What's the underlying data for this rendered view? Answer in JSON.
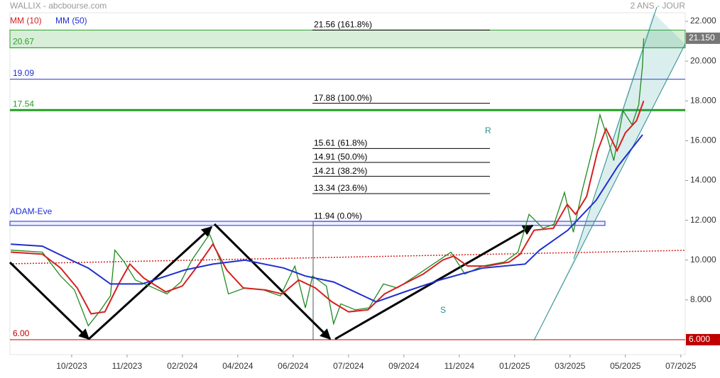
{
  "chart_data": {
    "type": "line",
    "title": "WALLIX - abcbourse.com",
    "subtitle": "2 ANS - JOUR",
    "xlim": [
      -1.115,
      11.08
    ],
    "ylim": [
      5.25,
      22.43
    ],
    "xticks": [
      {
        "value": 0,
        "label": "10/2023"
      },
      {
        "value": 1,
        "label": "11/2023"
      },
      {
        "value": 2,
        "label": "02/2024"
      },
      {
        "value": 3,
        "label": "04/2024"
      },
      {
        "value": 4,
        "label": "06/2024"
      },
      {
        "value": 5,
        "label": "07/2024"
      },
      {
        "value": 6,
        "label": "09/2024"
      },
      {
        "value": 7,
        "label": "11/2024"
      },
      {
        "value": 8,
        "label": "01/2025"
      },
      {
        "value": 9,
        "label": "03/2025"
      },
      {
        "value": 10,
        "label": "05/2025"
      },
      {
        "value": 11,
        "label": "07/2025"
      }
    ],
    "yticks": [
      {
        "value": 8,
        "label": "8.000"
      },
      {
        "value": 10,
        "label": "10.000"
      },
      {
        "value": 12,
        "label": "12.000"
      },
      {
        "value": 14,
        "label": "14.000"
      },
      {
        "value": 16,
        "label": "16.000"
      },
      {
        "value": 18,
        "label": "18.000"
      },
      {
        "value": 20,
        "label": "20.000"
      },
      {
        "value": 22,
        "label": "22.000"
      }
    ],
    "series": [
      {
        "color": "#1f8a1f",
        "x": [
          -1.1,
          -0.53,
          -0.2,
          0.05,
          0.3,
          0.5,
          0.7,
          0.78,
          0.95,
          1.15,
          1.4,
          1.72,
          1.97,
          2.17,
          2.49,
          2.68,
          2.83,
          3.13,
          3.46,
          3.77,
          4.03,
          4.22,
          4.35,
          4.6,
          4.73,
          4.86,
          5.12,
          5.37,
          5.63,
          5.88,
          6.21,
          6.53,
          6.85,
          7.1,
          7.42,
          7.81,
          8.06,
          8.26,
          8.51,
          8.71,
          8.9,
          9.06,
          9.22,
          9.41,
          9.54,
          9.67,
          9.79,
          9.96,
          10.12,
          10.24,
          10.31,
          10.33
        ],
        "values": [
          10.5,
          10.4,
          9.2,
          8.5,
          6.7,
          7.4,
          8.2,
          10.5,
          9.9,
          9.0,
          8.7,
          8.3,
          8.9,
          10.0,
          11.3,
          10.0,
          8.3,
          8.6,
          8.5,
          8.2,
          9.7,
          7.6,
          9.2,
          8.7,
          6.8,
          7.8,
          7.5,
          7.6,
          8.8,
          8.6,
          9.2,
          9.8,
          10.4,
          9.3,
          9.7,
          9.9,
          10.4,
          12.3,
          11.6,
          11.8,
          13.4,
          11.4,
          13.5,
          15.6,
          17.3,
          16.2,
          15.0,
          17.5,
          16.8,
          17.8,
          19.8,
          21.15
        ]
      },
      {
        "name": "MM (10)",
        "color": "#d62020",
        "x": [
          -1.1,
          -0.53,
          -0.2,
          0.1,
          0.35,
          0.6,
          0.85,
          1.05,
          1.3,
          1.7,
          2.0,
          2.3,
          2.55,
          2.8,
          3.1,
          3.5,
          3.8,
          4.1,
          4.4,
          4.7,
          5.0,
          5.35,
          5.65,
          6.0,
          6.35,
          6.7,
          6.9,
          7.15,
          7.5,
          7.9,
          8.1,
          8.35,
          8.7,
          8.95,
          9.1,
          9.3,
          9.5,
          9.65,
          9.85,
          10.0,
          10.2,
          10.33
        ],
        "values": [
          10.4,
          10.3,
          9.6,
          8.6,
          7.3,
          7.4,
          8.8,
          9.8,
          9.1,
          8.4,
          8.7,
          9.8,
          10.8,
          9.5,
          8.6,
          8.5,
          8.3,
          9.0,
          8.6,
          7.9,
          7.4,
          7.5,
          8.3,
          8.8,
          9.3,
          10.0,
          10.2,
          9.7,
          9.7,
          9.9,
          10.3,
          11.5,
          11.6,
          12.8,
          12.3,
          13.2,
          15.5,
          16.6,
          15.5,
          16.4,
          17.0,
          18.0
        ]
      },
      {
        "name": "MM (50)",
        "color": "#1f2fd0",
        "x": [
          -1.1,
          -0.53,
          -0.01,
          0.3,
          0.7,
          1.27,
          2.04,
          2.55,
          3.13,
          3.83,
          4.22,
          4.73,
          5.5,
          6.01,
          6.65,
          7.42,
          8.19,
          8.45,
          8.96,
          9.47,
          9.86,
          10.31
        ],
        "values": [
          10.8,
          10.7,
          10.0,
          9.6,
          8.8,
          8.8,
          9.5,
          9.8,
          10.0,
          9.6,
          9.2,
          8.9,
          7.9,
          8.4,
          9.0,
          9.6,
          9.8,
          10.5,
          11.5,
          13.0,
          14.7,
          16.3
        ]
      }
    ],
    "levels": [
      {
        "value": 20.67,
        "color": "#2ca02c",
        "width": 1
      },
      {
        "value": 19.09,
        "color": "#1f2fd0",
        "width": 1
      },
      {
        "value": 17.54,
        "color": "#22a022",
        "width": 3
      },
      {
        "value": 6,
        "label": "6.00",
        "color": "#c00000",
        "width": 1
      }
    ],
    "zone": {
      "range": [
        20.67,
        21.56
      ],
      "color": "#2ca02c"
    },
    "fibonacci": [
      {
        "value": 21.56,
        "label": "21.56  (161.8%)"
      },
      {
        "value": 17.88,
        "label": "17.88  (100.0%)"
      },
      {
        "value": 15.61,
        "label": "15.61  (61.8%)"
      },
      {
        "value": 14.91,
        "label": "14.91  (50.0%)"
      },
      {
        "value": 14.21,
        "label": "14.21  (38.2%)"
      },
      {
        "value": 13.34,
        "label": "13.34  (23.6%)"
      },
      {
        "value": 11.94,
        "label": "11.94  (0.0%)"
      }
    ],
    "band": {
      "label": "ADAM-Eve",
      "range": [
        11.74,
        11.95
      ],
      "color": "#1f2fd0"
    },
    "markers": [
      {
        "value": 21.15,
        "label": "21.150",
        "color": "#777777"
      },
      {
        "value": 6,
        "label": "6.000",
        "color": "#c00000"
      }
    ],
    "annotations": [
      "R",
      "S"
    ]
  }
}
